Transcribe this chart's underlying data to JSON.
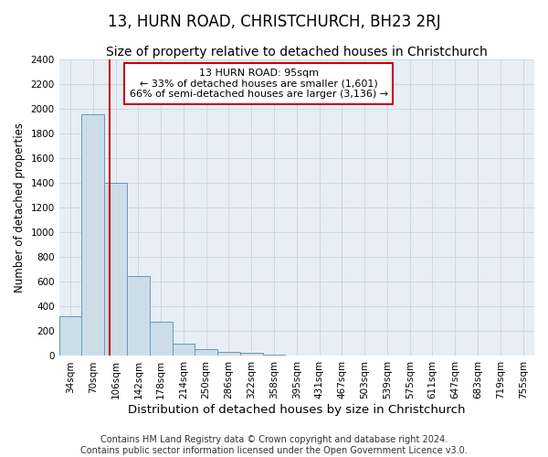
{
  "title": "13, HURN ROAD, CHRISTCHURCH, BH23 2RJ",
  "subtitle": "Size of property relative to detached houses in Christchurch",
  "xlabel": "Distribution of detached houses by size in Christchurch",
  "ylabel": "Number of detached properties",
  "footer_line1": "Contains HM Land Registry data © Crown copyright and database right 2024.",
  "footer_line2": "Contains public sector information licensed under the Open Government Licence v3.0.",
  "categories": [
    "34sqm",
    "70sqm",
    "106sqm",
    "142sqm",
    "178sqm",
    "214sqm",
    "250sqm",
    "286sqm",
    "322sqm",
    "358sqm",
    "395sqm",
    "431sqm",
    "467sqm",
    "503sqm",
    "539sqm",
    "575sqm",
    "611sqm",
    "647sqm",
    "683sqm",
    "719sqm",
    "755sqm"
  ],
  "values": [
    320,
    1960,
    1400,
    650,
    280,
    100,
    55,
    35,
    25,
    10,
    5,
    0,
    0,
    0,
    0,
    0,
    0,
    0,
    0,
    0,
    0
  ],
  "bar_color": "#ccdde8",
  "bar_edge_color": "#6699bb",
  "bar_edge_width": 0.7,
  "grid_color": "#c8d4e0",
  "background_color": "#e8eef5",
  "ylim": [
    0,
    2400
  ],
  "yticks": [
    0,
    200,
    400,
    600,
    800,
    1000,
    1200,
    1400,
    1600,
    1800,
    2000,
    2200,
    2400
  ],
  "red_line_color": "#cc0000",
  "red_line_x": 1.72,
  "annotation_text_line1": "13 HURN ROAD: 95sqm",
  "annotation_text_line2": "← 33% of detached houses are smaller (1,601)",
  "annotation_text_line3": "66% of semi-detached houses are larger (3,136) →",
  "annotation_box_color": "#ffffff",
  "annotation_border_color": "#cc0000",
  "title_fontsize": 12,
  "subtitle_fontsize": 10,
  "xlabel_fontsize": 9.5,
  "ylabel_fontsize": 8.5,
  "tick_fontsize": 7.5,
  "annotation_fontsize": 8,
  "footer_fontsize": 7
}
